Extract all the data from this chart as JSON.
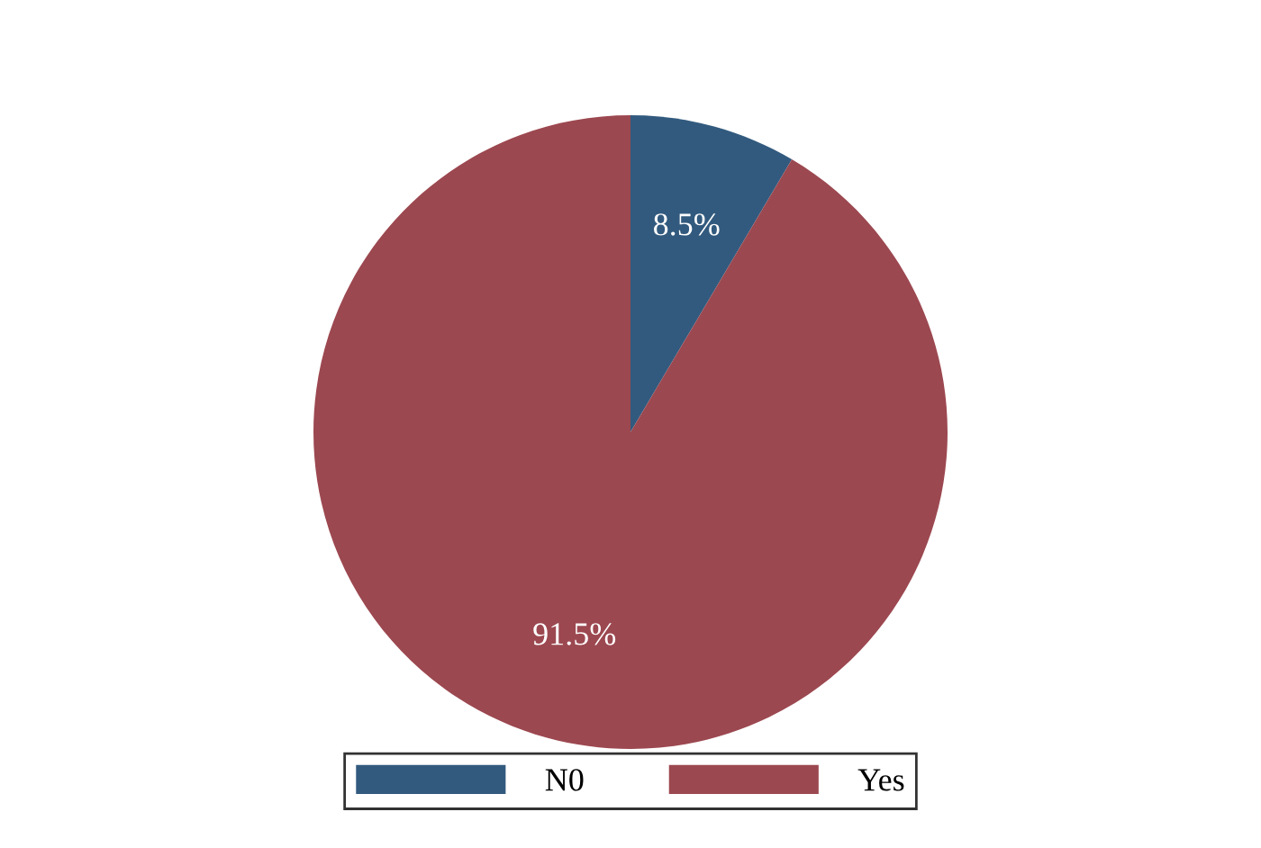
{
  "chart_data": {
    "type": "pie",
    "categories": [
      "N0",
      "Yes"
    ],
    "values": [
      8.5,
      91.5
    ],
    "colors": [
      "#325a7e",
      "#9c4850"
    ],
    "value_labels": [
      "8.5%",
      "91.5%"
    ],
    "legend": "bottom"
  }
}
